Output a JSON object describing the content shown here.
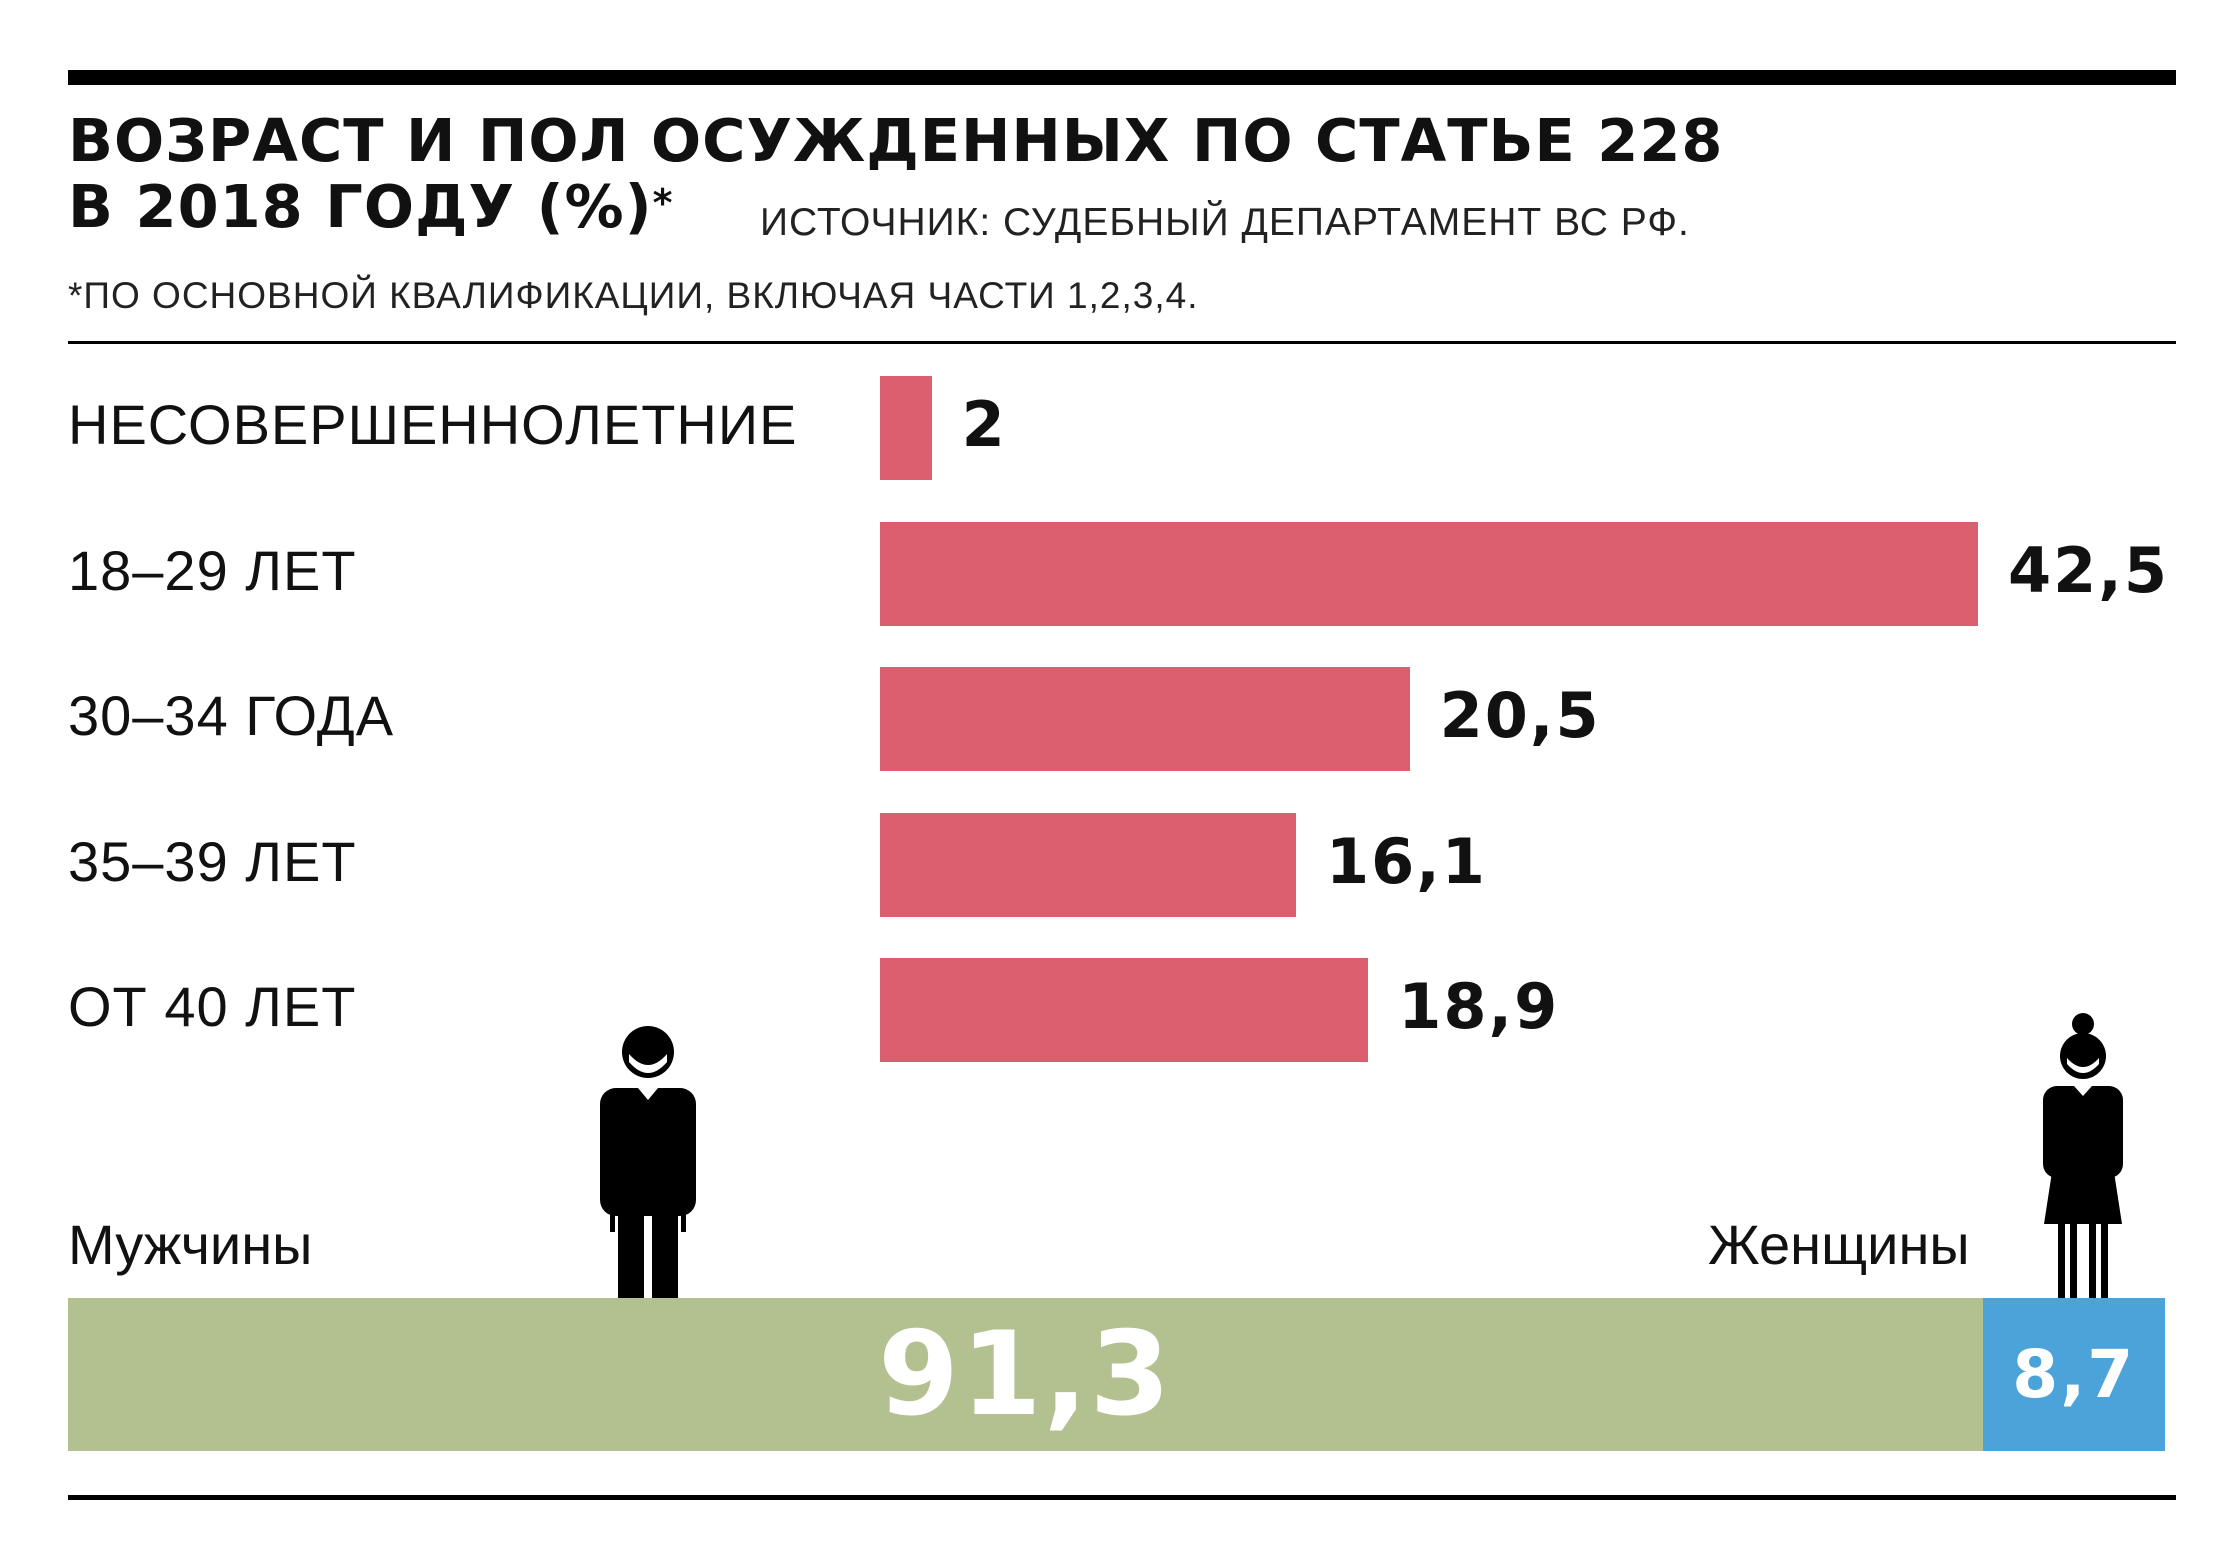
{
  "header": {
    "title_line1": "ВОЗРАСТ И ПОЛ ОСУЖДЕННЫХ ПО СТАТЬЕ 228",
    "title_line2": "В 2018 ГОДУ (%)",
    "title_mark": "*",
    "source": "ИСТОЧНИК: СУДЕБНЫЙ ДЕПАРТАМЕНТ ВС РФ.",
    "footnote": "*ПО ОСНОВНОЙ КВАЛИФИКАЦИИ, ВКЛЮЧАЯ ЧАСТИ 1,2,3,4."
  },
  "colors": {
    "age_bar": "#dc5f70",
    "men": "#b3c190",
    "women": "#4ba3d9"
  },
  "icons": {
    "men": "man-figure-icon",
    "women": "woman-figure-icon"
  },
  "chart_data": [
    {
      "type": "bar",
      "orientation": "horizontal",
      "title": "ВОЗРАСТ И ПОЛ ОСУЖДЕННЫХ ПО СТАТЬЕ 228 В 2018 ГОДУ (%)",
      "categories": [
        "НЕСОВЕРШЕННОЛЕТНИЕ",
        "18–29 ЛЕТ",
        "30–34 ГОДА",
        "35–39 ЛЕТ",
        "ОТ 40 ЛЕТ"
      ],
      "values": [
        2,
        42.5,
        20.5,
        16.1,
        18.9
      ],
      "value_labels": [
        "2",
        "42,5",
        "20,5",
        "16,1",
        "18,9"
      ],
      "xlim": [
        0,
        42.5
      ],
      "grid": false,
      "legend": "none"
    },
    {
      "type": "bar",
      "orientation": "horizontal",
      "stacked": true,
      "categories": [
        "Мужчины",
        "Женщины"
      ],
      "values": [
        91.3,
        8.7
      ],
      "value_labels": [
        "91,3",
        "8,7"
      ],
      "xlim": [
        0,
        100
      ],
      "grid": false,
      "legend": "none"
    }
  ]
}
